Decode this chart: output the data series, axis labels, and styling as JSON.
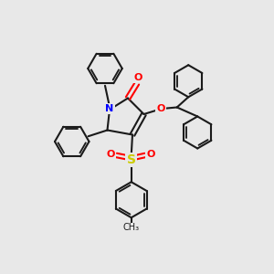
{
  "background_color": "#e8e8e8",
  "bond_color": "#1a1a1a",
  "bond_width": 1.5,
  "N_color": "#0000ff",
  "O_color": "#ff0000",
  "S_color": "#cccc00",
  "figsize": [
    3.0,
    3.0
  ],
  "dpi": 100,
  "xlim": [
    0,
    12
  ],
  "ylim": [
    0,
    12
  ]
}
